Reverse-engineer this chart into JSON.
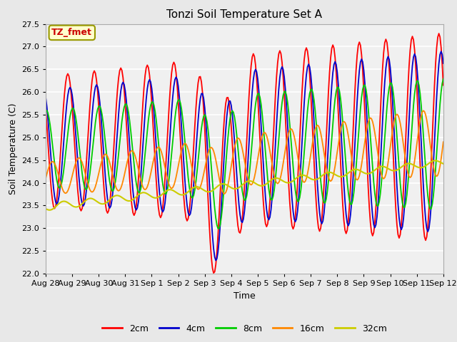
{
  "title": "Tonzi Soil Temperature Set A",
  "xlabel": "Time",
  "ylabel": "Soil Temperature (C)",
  "ylim": [
    22.0,
    27.5
  ],
  "yticks": [
    22.0,
    22.5,
    23.0,
    23.5,
    24.0,
    24.5,
    25.0,
    25.5,
    26.0,
    26.5,
    27.0,
    27.5
  ],
  "annotation_text": "TZ_fmet",
  "annotation_color": "#cc0000",
  "annotation_bg": "#ffffcc",
  "annotation_border": "#999900",
  "series_colors": {
    "2cm": "#ff0000",
    "4cm": "#0000cc",
    "8cm": "#00cc00",
    "16cm": "#ff8800",
    "32cm": "#cccc00"
  },
  "legend_labels": [
    "2cm",
    "4cm",
    "8cm",
    "16cm",
    "32cm"
  ],
  "background_color": "#e8e8e8",
  "plot_bg_color": "#f0f0f0",
  "tick_days": [
    0,
    1,
    2,
    3,
    4,
    5,
    6,
    7,
    8,
    9,
    10,
    11,
    12,
    13,
    14,
    15
  ],
  "tick_labels": [
    "Aug 28",
    "Aug 29",
    "Aug 30",
    "Aug 31",
    "Sep 1",
    "Sep 2",
    "Sep 3",
    "Sep 4",
    "Sep 5",
    "Sep 6",
    "Sep 7",
    "Sep 8",
    "Sep 9",
    "Sep 10",
    "Sep 11",
    "Sep 12"
  ]
}
